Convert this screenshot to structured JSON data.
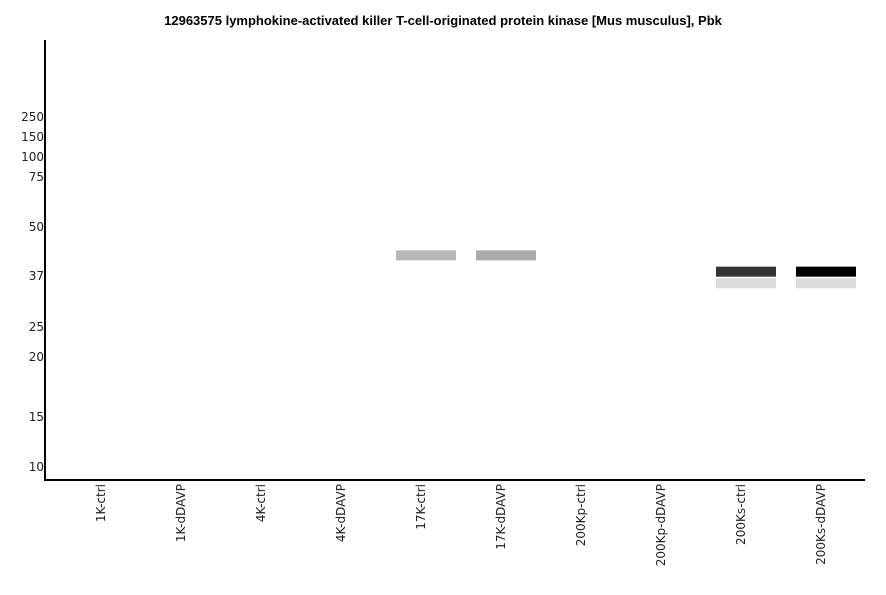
{
  "chart_data": {
    "type": "western-blot",
    "title": "12963575 lymphokine-activated killer T-cell-originated protein kinase [Mus musculus], Pbk",
    "y_ticks": [
      "250",
      "150",
      "100",
      "75",
      "50",
      "37",
      "25",
      "20",
      "15",
      "10"
    ],
    "lanes": [
      "1K-ctrl",
      "1K-dDAVP",
      "4K-ctrl",
      "4K-dDAVP",
      "17K-ctrl",
      "17K-dDAVP",
      "200Kp-ctrl",
      "200Kp-dDAVP",
      "200Ks-ctrl",
      "200Ks-dDAVP"
    ],
    "bands": [
      {
        "lane": "17K-ctrl",
        "mw": 42,
        "intensity": 0.28
      },
      {
        "lane": "17K-dDAVP",
        "mw": 42,
        "intensity": 0.33
      },
      {
        "lane": "200Ks-ctrl",
        "mw": 38,
        "intensity": 0.8
      },
      {
        "lane": "200Ks-ctrl",
        "mw": 35,
        "intensity": 0.14
      },
      {
        "lane": "200Ks-dDAVP",
        "mw": 38,
        "intensity": 1.0
      },
      {
        "lane": "200Ks-dDAVP",
        "mw": 35,
        "intensity": 0.14
      }
    ]
  }
}
